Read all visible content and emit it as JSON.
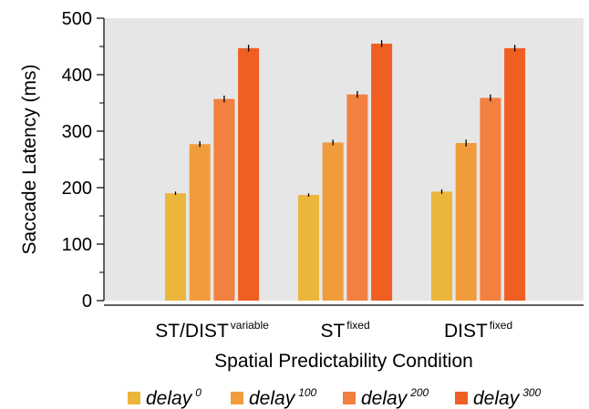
{
  "chart_data": {
    "type": "bar",
    "xlabel": "Spatial Predictability Condition",
    "ylabel": "Saccade Latency (ms)",
    "ylim": [
      0,
      500
    ],
    "yticks": [
      0,
      100,
      200,
      300,
      400,
      500
    ],
    "grid": false,
    "legend_placement": "bottom",
    "background": "#e6e6e6",
    "categories": [
      {
        "base": "ST/DIST",
        "sup": "variable"
      },
      {
        "base": "ST",
        "sup": "fixed"
      },
      {
        "base": "DIST",
        "sup": "fixed"
      }
    ],
    "series": [
      {
        "name": "delay",
        "sup": "0",
        "color": "#ecb53c",
        "values": [
          190,
          187,
          193
        ],
        "errors": [
          3,
          3,
          4
        ]
      },
      {
        "name": "delay",
        "sup": "100",
        "color": "#f19c3c",
        "values": [
          277,
          280,
          279
        ],
        "errors": [
          5,
          5,
          6
        ]
      },
      {
        "name": "delay",
        "sup": "200",
        "color": "#f28040",
        "values": [
          357,
          365,
          359
        ],
        "errors": [
          6,
          6,
          6
        ]
      },
      {
        "name": "delay",
        "sup": "300",
        "color": "#f05f22",
        "values": [
          447,
          455,
          447
        ],
        "errors": [
          6,
          6,
          6
        ]
      }
    ]
  }
}
